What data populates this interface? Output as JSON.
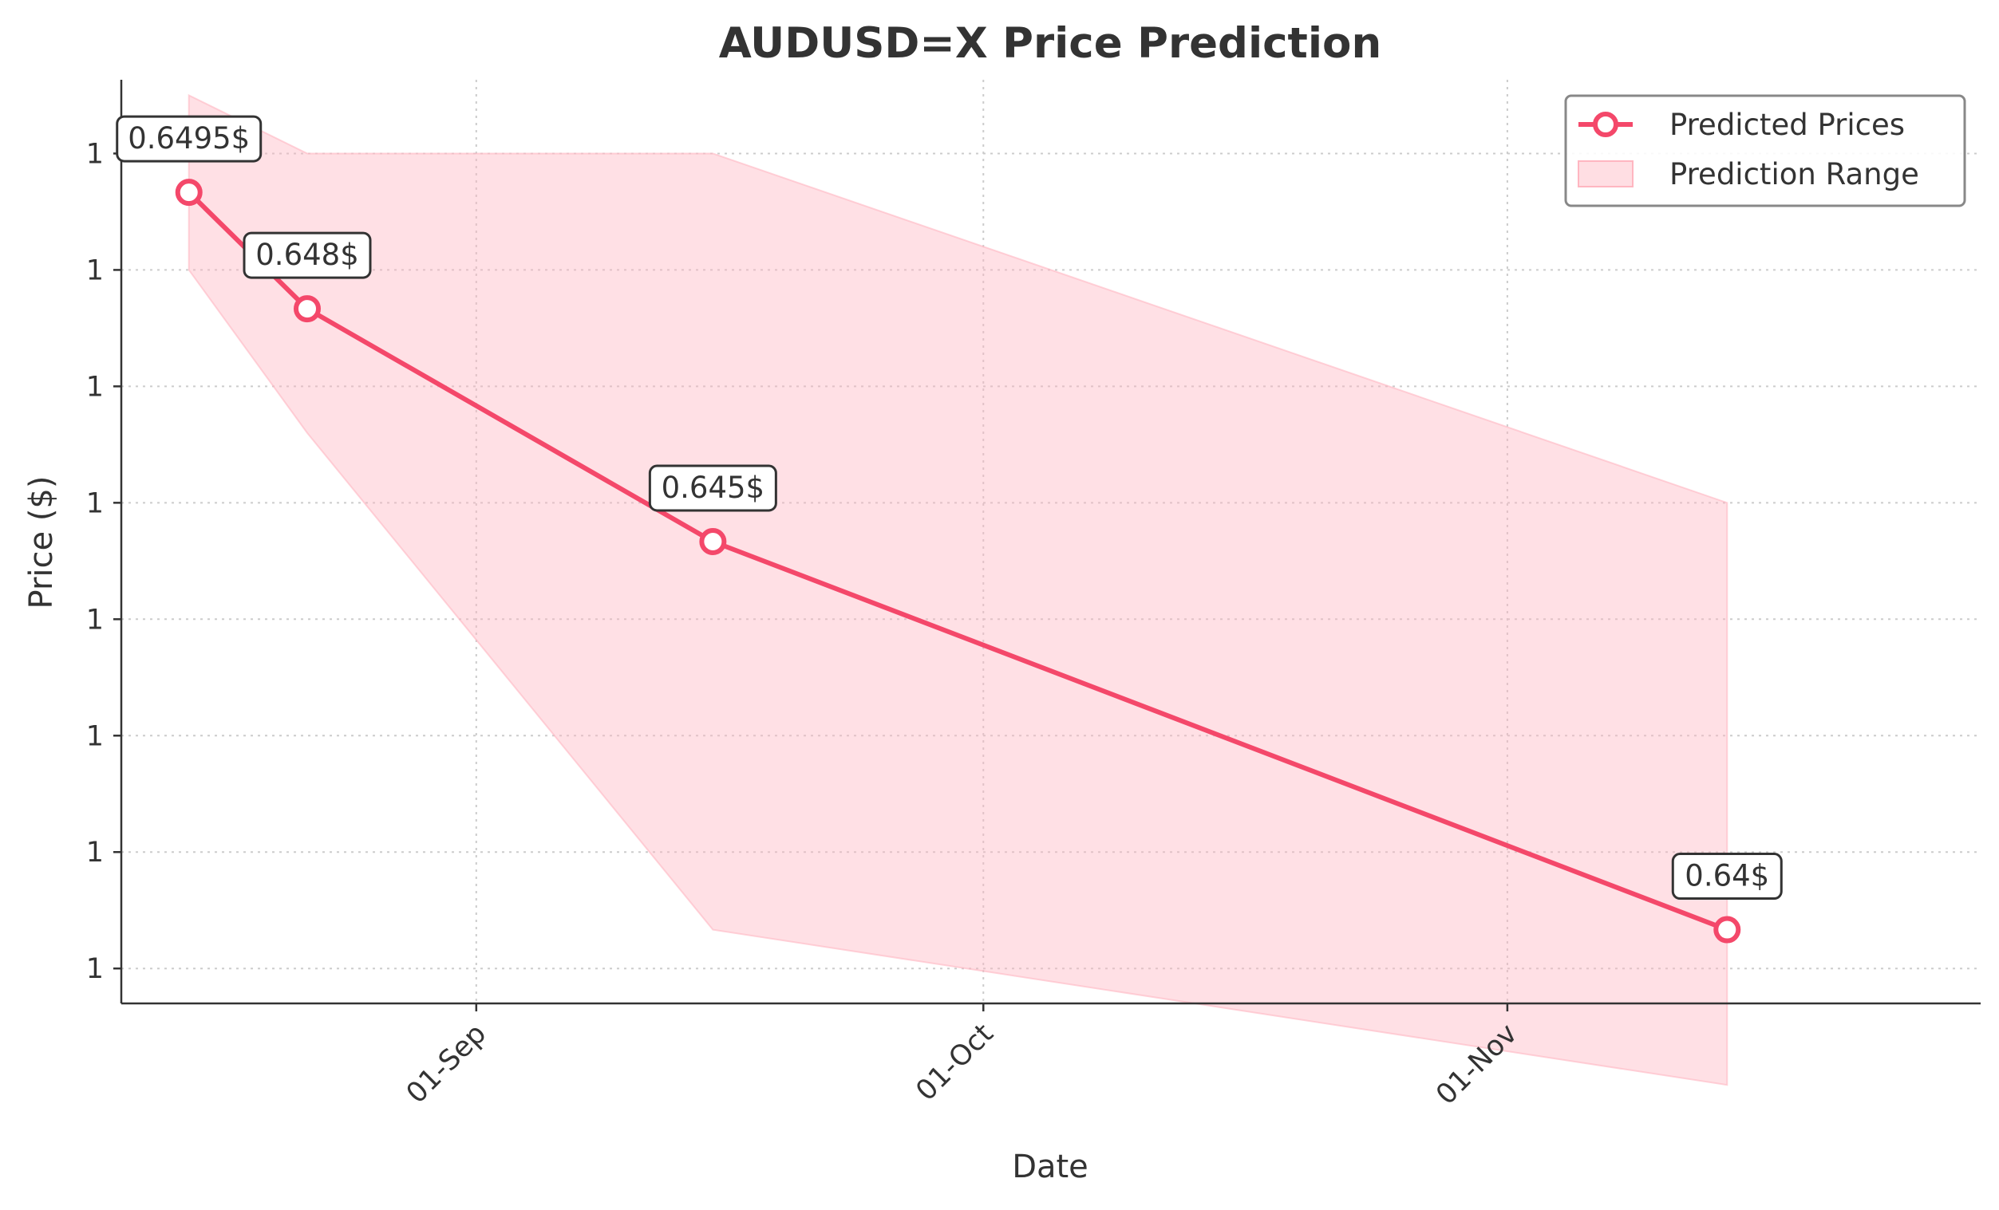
{
  "chart_data": {
    "type": "line",
    "title": "AUDUSD=X Price Prediction",
    "xlabel": "Date",
    "ylabel": "Price ($)",
    "x": [
      "2024-08-15",
      "2024-08-22",
      "2024-09-15",
      "2024-11-14"
    ],
    "xlim": [
      "2024-08-11",
      "2024-11-29"
    ],
    "ylim": [
      0.63905,
      0.65095
    ],
    "grid": true,
    "legend_position": "top-right",
    "x_ticks": [
      {
        "date": "2024-09-01",
        "label": "01-Sep"
      },
      {
        "date": "2024-10-01",
        "label": "01-Oct"
      },
      {
        "date": "2024-11-01",
        "label": "01-Nov"
      }
    ],
    "y_ticks": [
      {
        "value": 0.65,
        "label": "1"
      },
      {
        "value": 0.6485,
        "label": "1"
      },
      {
        "value": 0.647,
        "label": "1"
      },
      {
        "value": 0.6455,
        "label": "1"
      },
      {
        "value": 0.644,
        "label": "1"
      },
      {
        "value": 0.6425,
        "label": "1"
      },
      {
        "value": 0.641,
        "label": "1"
      },
      {
        "value": 0.6395,
        "label": "1"
      }
    ],
    "series": [
      {
        "name": "Predicted Prices",
        "values": [
          0.6495,
          0.648,
          0.645,
          0.64
        ],
        "labels": [
          "0.6495$",
          "0.648$",
          "0.645$",
          "0.64$"
        ],
        "color": "#F4486A"
      }
    ],
    "range": {
      "name": "Prediction Range",
      "x": [
        "2024-08-15",
        "2024-08-22",
        "2024-09-15",
        "2024-11-14"
      ],
      "upper": [
        0.65075,
        0.65,
        0.65,
        0.6455
      ],
      "lower": [
        0.6485,
        0.6464,
        0.64,
        0.638
      ],
      "color": "#FFB6C1"
    }
  }
}
